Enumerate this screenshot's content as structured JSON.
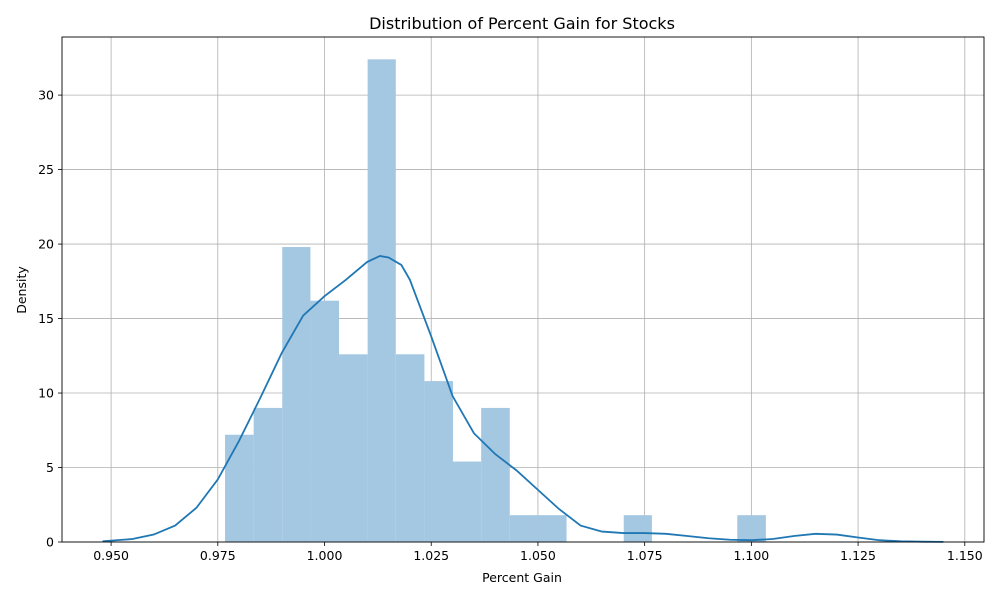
{
  "chart_data": {
    "type": "bar",
    "title": "Distribution of Percent Gain for Stocks",
    "xlabel": "Percent Gain",
    "ylabel": "Density",
    "xlim": [
      0.9385,
      1.1545
    ],
    "ylim": [
      0,
      33.9
    ],
    "grid": true,
    "x_ticks": [
      "0.950",
      "0.975",
      "1.000",
      "1.025",
      "1.050",
      "1.075",
      "1.100",
      "1.125",
      "1.150"
    ],
    "y_ticks": [
      "0",
      "5",
      "10",
      "15",
      "20",
      "25",
      "30"
    ],
    "x_tick_values": [
      0.95,
      0.975,
      1.0,
      1.025,
      1.05,
      1.075,
      1.1,
      1.125,
      1.15
    ],
    "y_tick_values": [
      0,
      5,
      10,
      15,
      20,
      25,
      30
    ],
    "bar_color": "#a4c7e2",
    "line_color": "#1f77b4",
    "bins": [
      {
        "x0": 0.9767,
        "x1": 0.9834,
        "density": 7.2
      },
      {
        "x0": 0.9834,
        "x1": 0.9901,
        "density": 9.0
      },
      {
        "x0": 0.9901,
        "x1": 0.9967,
        "density": 19.8
      },
      {
        "x0": 0.9967,
        "x1": 1.0034,
        "density": 16.2
      },
      {
        "x0": 1.0034,
        "x1": 1.0101,
        "density": 12.6
      },
      {
        "x0": 1.0101,
        "x1": 1.0167,
        "density": 32.4
      },
      {
        "x0": 1.0167,
        "x1": 1.0234,
        "density": 12.6
      },
      {
        "x0": 1.0234,
        "x1": 1.0301,
        "density": 10.8
      },
      {
        "x0": 1.0301,
        "x1": 1.0367,
        "density": 5.4
      },
      {
        "x0": 1.0367,
        "x1": 1.0434,
        "density": 9.0
      },
      {
        "x0": 1.0434,
        "x1": 1.0501,
        "density": 1.8
      },
      {
        "x0": 1.0501,
        "x1": 1.0567,
        "density": 1.8
      },
      {
        "x0": 1.0567,
        "x1": 1.0634,
        "density": 0
      },
      {
        "x0": 1.0634,
        "x1": 1.0701,
        "density": 0
      },
      {
        "x0": 1.0701,
        "x1": 1.0767,
        "density": 1.8
      },
      {
        "x0": 1.0767,
        "x1": 1.0834,
        "density": 0
      },
      {
        "x0": 1.0834,
        "x1": 1.0901,
        "density": 0
      },
      {
        "x0": 1.0901,
        "x1": 1.0967,
        "density": 0
      },
      {
        "x0": 1.0967,
        "x1": 1.1034,
        "density": 1.8
      },
      {
        "x0": 1.1034,
        "x1": 1.1101,
        "density": 0
      }
    ],
    "kde": {
      "x": [
        0.948,
        0.955,
        0.96,
        0.965,
        0.97,
        0.975,
        0.98,
        0.985,
        0.99,
        0.995,
        1.0,
        1.005,
        1.01,
        1.013,
        1.015,
        1.018,
        1.02,
        1.025,
        1.03,
        1.035,
        1.04,
        1.045,
        1.05,
        1.055,
        1.06,
        1.065,
        1.07,
        1.075,
        1.08,
        1.085,
        1.09,
        1.095,
        1.1,
        1.105,
        1.11,
        1.115,
        1.12,
        1.125,
        1.13,
        1.135,
        1.14,
        1.145
      ],
      "y": [
        0.05,
        0.2,
        0.5,
        1.1,
        2.3,
        4.2,
        6.8,
        9.7,
        12.7,
        15.2,
        16.5,
        17.6,
        18.8,
        19.2,
        19.1,
        18.6,
        17.6,
        13.8,
        9.8,
        7.3,
        5.9,
        4.8,
        3.5,
        2.2,
        1.1,
        0.7,
        0.6,
        0.6,
        0.55,
        0.4,
        0.25,
        0.15,
        0.12,
        0.2,
        0.4,
        0.55,
        0.5,
        0.3,
        0.12,
        0.05,
        0.02,
        0.01
      ]
    }
  }
}
